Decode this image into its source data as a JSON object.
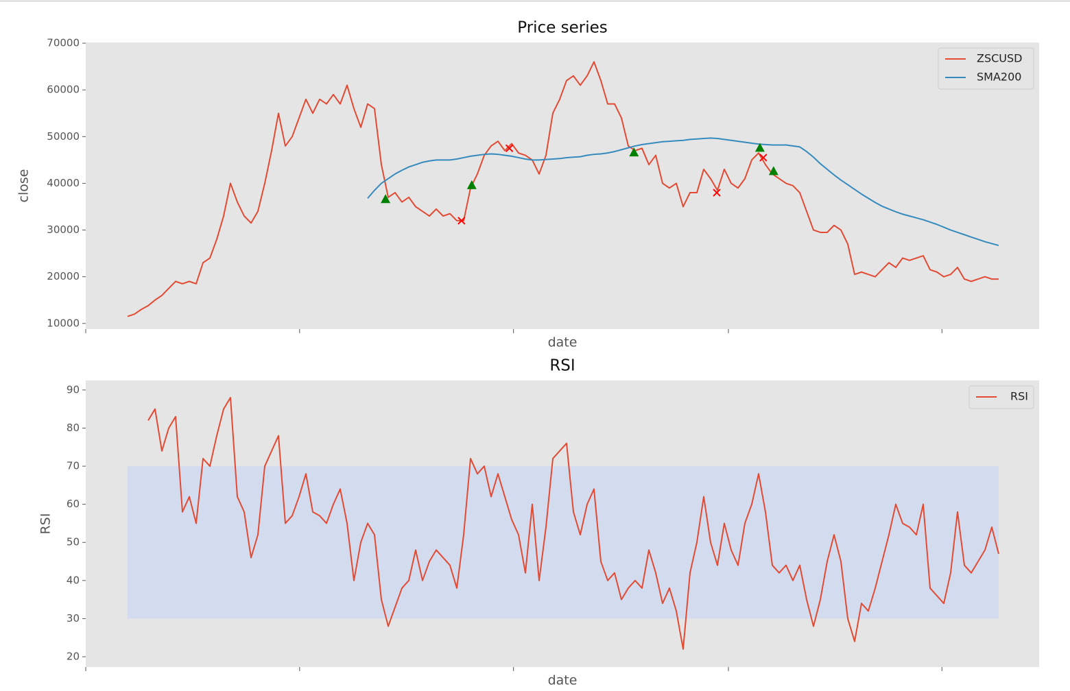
{
  "chart_data": [
    {
      "type": "line",
      "title": "Price series",
      "xlabel": "date",
      "ylabel": "close",
      "xlim": [
        -6.1,
        133.2
      ],
      "xticks": [
        -6.1,
        25.15,
        56.4,
        87.8,
        119.0
      ],
      "ylim": [
        8800,
        70150
      ],
      "yticks": [
        10000,
        20000,
        30000,
        40000,
        50000,
        60000,
        70000
      ],
      "legend": "upper right",
      "series": [
        {
          "name": "ZSCUSD",
          "color": "#e24a33",
          "values": [
            11500,
            12000,
            13000,
            13800,
            15000,
            16000,
            17500,
            19000,
            18500,
            19000,
            18500,
            23000,
            24000,
            28000,
            33000,
            40000,
            36000,
            33000,
            31500,
            34000,
            40000,
            47000,
            55000,
            48000,
            50000,
            54000,
            58000,
            55000,
            58000,
            57000,
            59000,
            57000,
            61000,
            56000,
            52000,
            57000,
            56000,
            44000,
            37000,
            38000,
            36000,
            37000,
            35000,
            34000,
            33000,
            34500,
            33000,
            33500,
            32000,
            32000,
            39000,
            42000,
            46000,
            48000,
            49000,
            47000,
            48500,
            46500,
            46000,
            45000,
            42000,
            46000,
            55000,
            58000,
            62000,
            63000,
            61000,
            63000,
            66000,
            62000,
            57000,
            57000,
            54000,
            48000,
            47000,
            47500,
            44000,
            46000,
            40000,
            39000,
            40000,
            35000,
            38000,
            38000,
            43000,
            41000,
            38500,
            43000,
            40000,
            39000,
            41000,
            45000,
            46500,
            44000,
            42000,
            41000,
            40000,
            39500,
            38000,
            34000,
            30000,
            29500,
            29500,
            31000,
            30000,
            27000,
            20500,
            21000,
            20500,
            20000,
            21500,
            23000,
            22000,
            24000,
            23500,
            24000,
            24500,
            21500,
            21000,
            20000,
            20500,
            22000,
            19500,
            19000,
            19500,
            20000,
            19500,
            19500
          ]
        },
        {
          "name": "SMA200",
          "color": "#348abd",
          "values": [
            null,
            null,
            null,
            null,
            null,
            null,
            null,
            null,
            null,
            null,
            null,
            null,
            null,
            null,
            null,
            null,
            null,
            null,
            null,
            null,
            null,
            null,
            null,
            null,
            null,
            null,
            null,
            null,
            null,
            null,
            null,
            null,
            null,
            null,
            null,
            36800,
            38500,
            40000,
            41000,
            42000,
            42800,
            43500,
            44000,
            44500,
            44800,
            45000,
            45000,
            45000,
            45200,
            45500,
            45800,
            46000,
            46200,
            46300,
            46200,
            46000,
            45800,
            45500,
            45200,
            45000,
            45000,
            45100,
            45200,
            45300,
            45500,
            45600,
            45700,
            46000,
            46200,
            46300,
            46500,
            46800,
            47200,
            47600,
            48000,
            48300,
            48500,
            48700,
            48900,
            49000,
            49100,
            49200,
            49400,
            49500,
            49600,
            49700,
            49600,
            49400,
            49200,
            49000,
            48800,
            48600,
            48400,
            48300,
            48200,
            48200,
            48200,
            48000,
            47800,
            46800,
            45600,
            44200,
            43000,
            41800,
            40700,
            39700,
            38700,
            37700,
            36800,
            35900,
            35100,
            34500,
            33900,
            33400,
            33000,
            32600,
            32200,
            31700,
            31200,
            30600,
            30000,
            29500,
            29000,
            28500,
            28000,
            27500,
            27100,
            26700
          ]
        },
        {
          "marker": "triangle",
          "color": "#008000",
          "x": [
            37.7,
            50.3,
            74.0,
            92.4,
            94.4
          ],
          "values": [
            36500,
            39500,
            46500,
            47500,
            42500
          ]
        },
        {
          "marker": "cross",
          "color": "#ff0000",
          "x": [
            48.8,
            55.8,
            86.1,
            92.9
          ],
          "values": [
            32000,
            47500,
            38000,
            45500
          ]
        }
      ]
    },
    {
      "type": "line",
      "title": "RSI",
      "xlabel": "date",
      "ylabel": "RSI",
      "xlim": [
        -6.1,
        133.2
      ],
      "xticks": [
        -6.1,
        25.15,
        56.4,
        87.8,
        119.0
      ],
      "ylim": [
        17.3,
        92.5
      ],
      "yticks": [
        20,
        30,
        40,
        50,
        60,
        70,
        80,
        90
      ],
      "legend": "upper right",
      "band": [
        30,
        70
      ],
      "band_color": "#d3dcee",
      "series": [
        {
          "name": "RSI",
          "color": "#e24a33",
          "values": [
            null,
            null,
            null,
            82,
            85,
            74,
            80,
            83,
            58,
            62,
            55,
            72,
            70,
            78,
            85,
            88,
            62,
            58,
            46,
            52,
            70,
            74,
            78,
            55,
            57,
            62,
            68,
            58,
            57,
            55,
            60,
            64,
            55,
            40,
            50,
            55,
            52,
            35,
            28,
            33,
            38,
            40,
            48,
            40,
            45,
            48,
            46,
            44,
            38,
            52,
            72,
            68,
            70,
            62,
            68,
            62,
            56,
            52,
            42,
            60,
            40,
            54,
            72,
            74,
            76,
            58,
            52,
            60,
            64,
            45,
            40,
            42,
            35,
            38,
            40,
            38,
            48,
            42,
            34,
            38,
            32,
            22,
            42,
            50,
            62,
            50,
            44,
            55,
            48,
            44,
            55,
            60,
            68,
            58,
            44,
            42,
            44,
            40,
            44,
            35,
            28,
            35,
            45,
            52,
            45,
            30,
            24,
            34,
            32,
            38,
            45,
            52,
            60,
            55,
            54,
            52,
            60,
            38,
            36,
            34,
            42,
            58,
            44,
            42,
            45,
            48,
            54,
            47
          ]
        }
      ]
    }
  ]
}
